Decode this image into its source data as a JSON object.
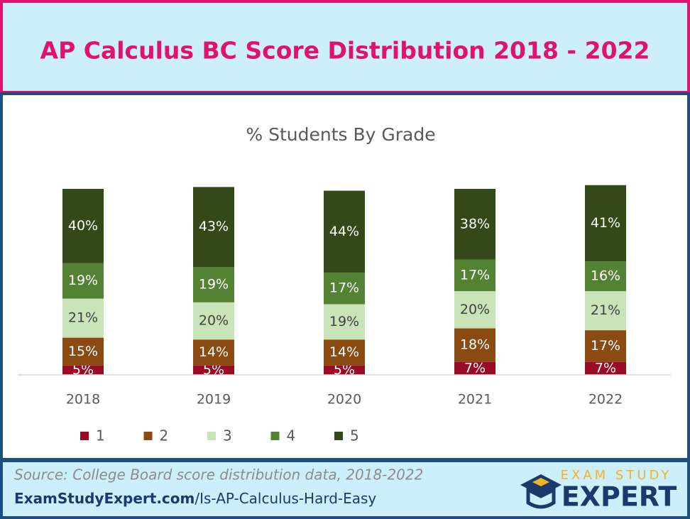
{
  "chart_data": {
    "type": "stacked-bar",
    "title": "AP Calculus BC Score Distribution 2018 - 2022",
    "subtitle": "% Students By Grade",
    "categories": [
      "2018",
      "2019",
      "2020",
      "2021",
      "2022"
    ],
    "ylim": [
      0,
      100
    ],
    "series": [
      {
        "name": "1",
        "color": "#9b0a24",
        "values": [
          5,
          5,
          5,
          7,
          7
        ],
        "value_labels": [
          "5%",
          "5%",
          "5%",
          "7%",
          "7%"
        ]
      },
      {
        "name": "2",
        "color": "#8b4a12",
        "values": [
          15,
          14,
          14,
          18,
          17
        ],
        "value_labels": [
          "15%",
          "14%",
          "14%",
          "18%",
          "17%"
        ]
      },
      {
        "name": "3",
        "color": "#c8e4b8",
        "values": [
          21,
          20,
          19,
          20,
          21
        ],
        "value_labels": [
          "21%",
          "20%",
          "19%",
          "20%",
          "21%"
        ]
      },
      {
        "name": "4",
        "color": "#548233",
        "values": [
          19,
          19,
          17,
          17,
          16
        ],
        "value_labels": [
          "19%",
          "19%",
          "17%",
          "17%",
          "16%"
        ]
      },
      {
        "name": "5",
        "color": "#334a18",
        "values": [
          40,
          43,
          44,
          38,
          41
        ],
        "value_labels": [
          "40%",
          "43%",
          "44%",
          "38%",
          "41%"
        ]
      }
    ]
  },
  "footer": {
    "source": "Source: College Board score distribution data, 2018-2022",
    "link_bold": "ExamStudyExpert.com",
    "link_rest": "/Is-AP-Calculus-Hard-Easy"
  },
  "logo": {
    "top": "EXAM STUDY",
    "bottom": "EXPERT"
  }
}
